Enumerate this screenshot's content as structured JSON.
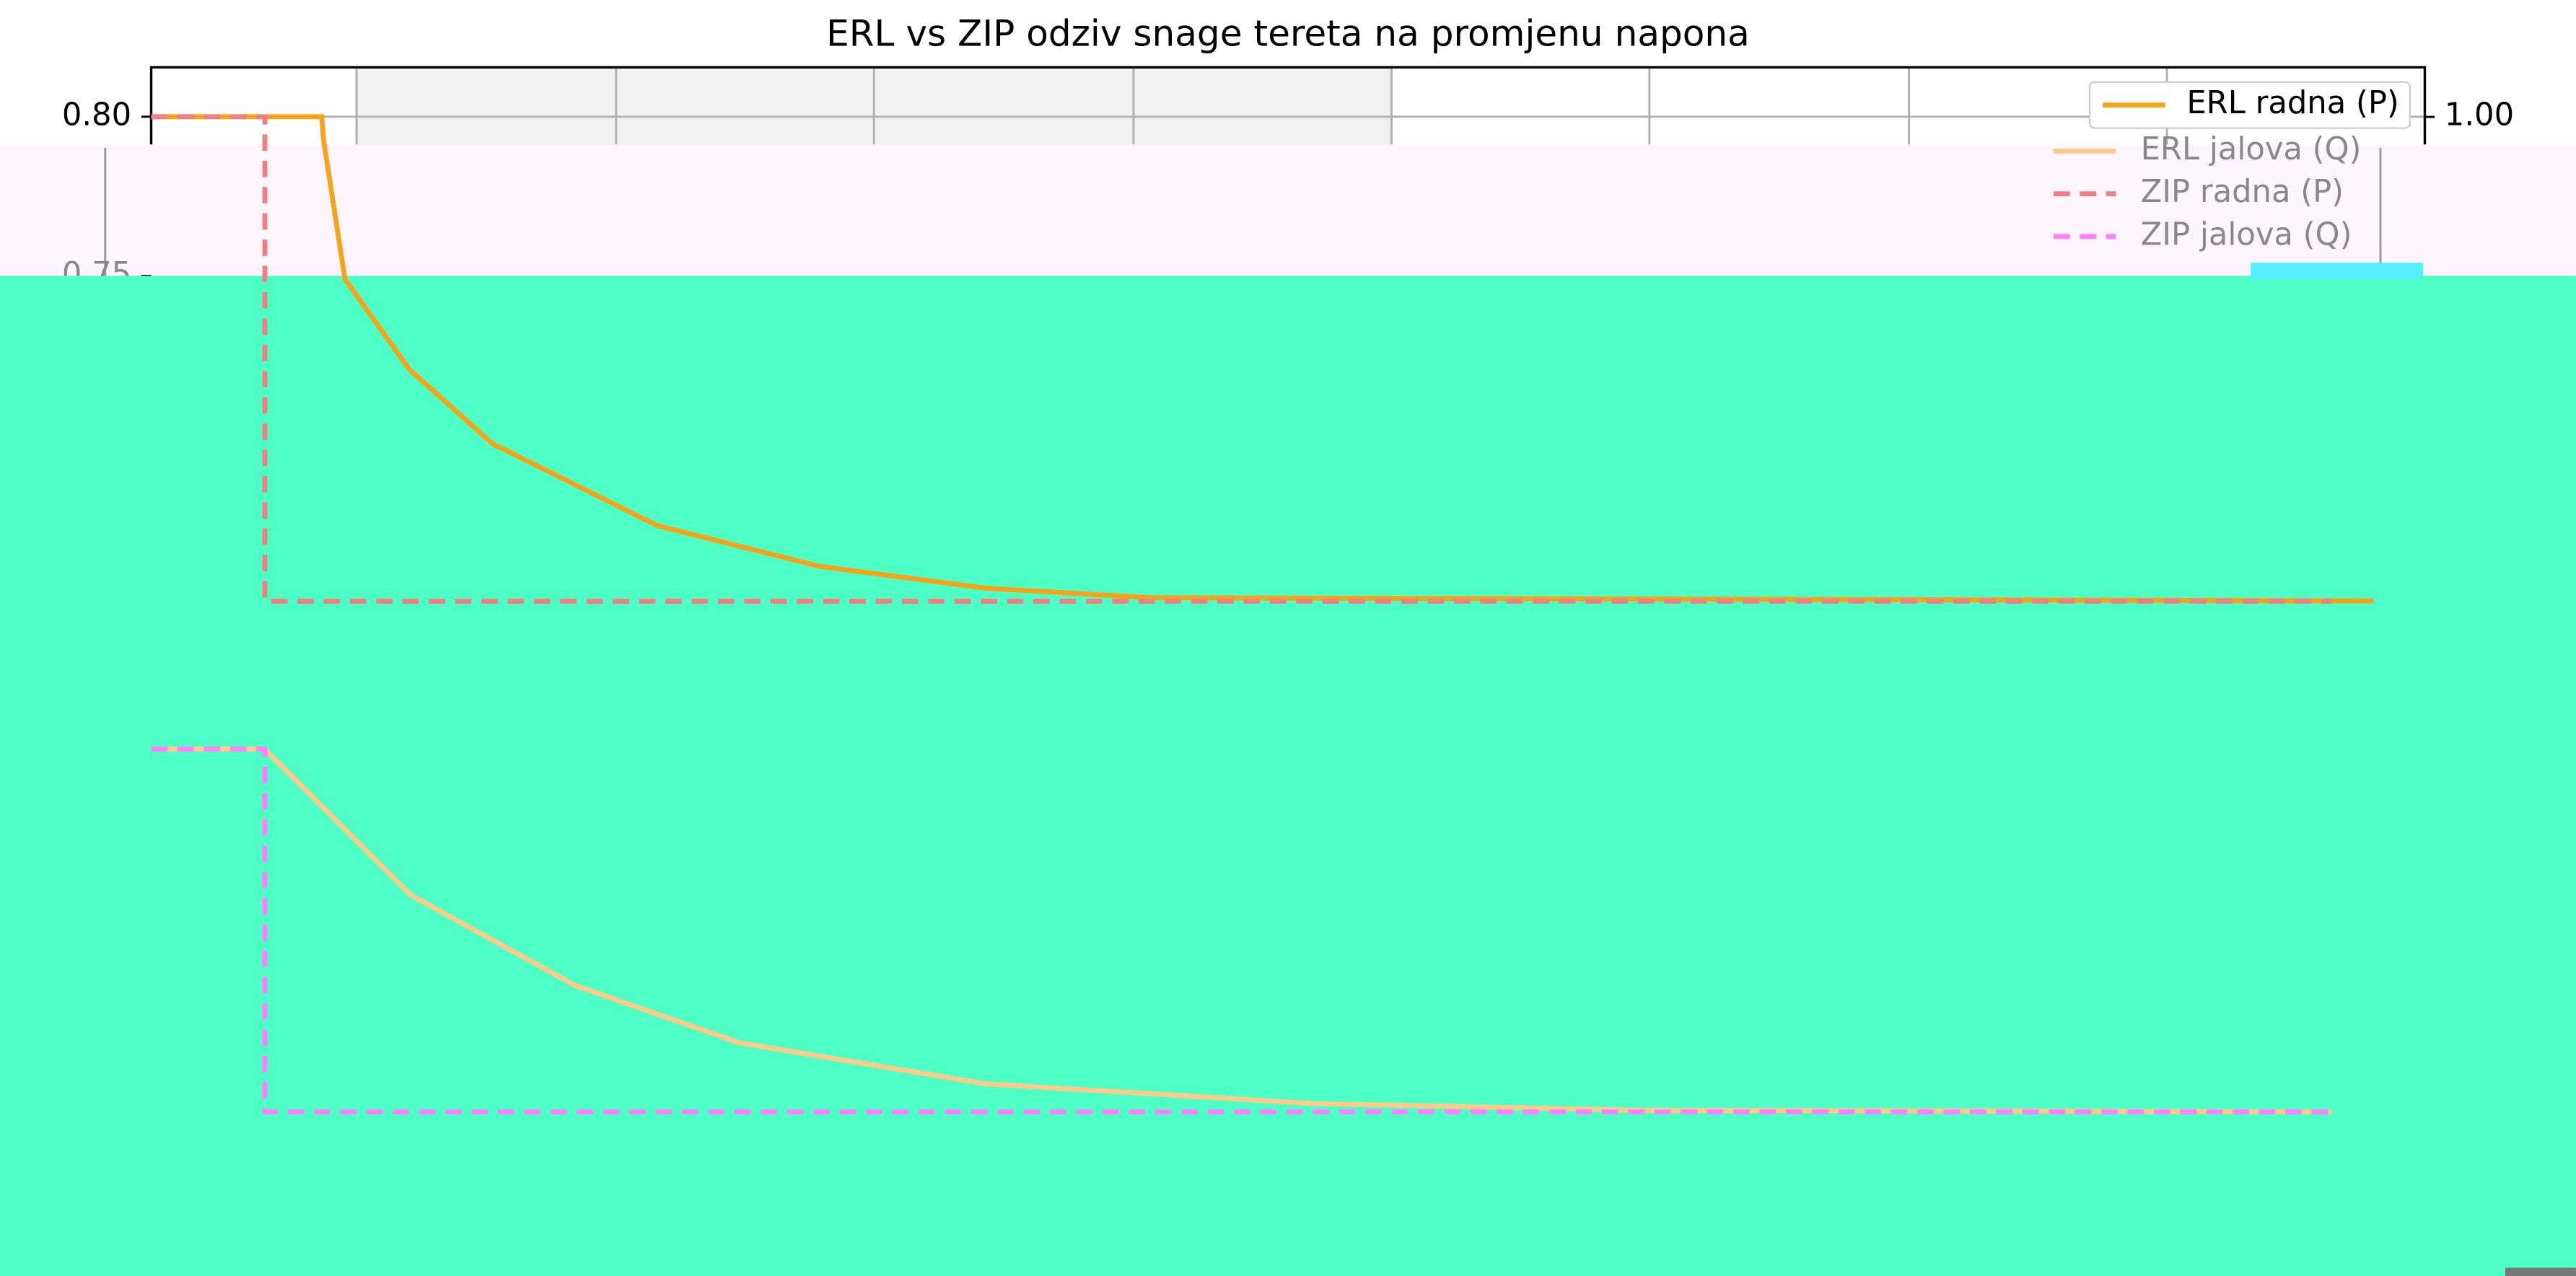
{
  "chart_data": {
    "type": "line",
    "title": "ERL vs ZIP odziv snage tereta na promjenu napona",
    "xlim": [
      -0.8,
      8.0
    ],
    "ylim": [
      0.4366,
      0.8155
    ],
    "yticks": [
      {
        "value": 0.8,
        "label": "0.80"
      },
      {
        "value": 0.75,
        "label": "0.75"
      }
    ],
    "y2lim": [
      0.3,
      1.03
    ],
    "y2ticks": [
      {
        "value": 1.0,
        "label": "1.00"
      }
    ],
    "grid": true,
    "legend": "upper right",
    "series": [
      {
        "name": "ERL radna (P)",
        "color": "#f5a31a",
        "linestyle": "solid",
        "x": [
          -0.8,
          -0.14,
          -0.133,
          -0.05,
          0.2,
          0.52,
          1.16,
          1.79,
          2.43,
          3.07,
          7.8
        ],
        "values": [
          0.8,
          0.8,
          0.7928,
          0.749,
          0.7206,
          0.6974,
          0.6716,
          0.6588,
          0.652,
          0.649,
          0.648
        ]
      },
      {
        "name": "ERL jalova (Q)",
        "color": "#ffc98a",
        "linestyle": "solid",
        "x": [
          -0.8,
          -0.361,
          0.204,
          0.84,
          1.476,
          2.43,
          3.7,
          4.97,
          7.64
        ],
        "values": [
          0.6015,
          0.6015,
          0.5557,
          0.5273,
          0.5093,
          0.4964,
          0.4902,
          0.4881,
          0.4876
        ]
      },
      {
        "name": "ZIP radna (P)",
        "color": "#f08080",
        "linestyle": "dashed",
        "x": [
          -0.8,
          -0.36,
          -0.36,
          7.64
        ],
        "values": [
          0.8,
          0.8,
          0.6479,
          0.6479
        ]
      },
      {
        "name": "ZIP jalova (Q)",
        "color": "#ff80ff",
        "linestyle": "dashed",
        "x": [
          -0.8,
          -0.36,
          -0.36,
          7.64
        ],
        "values": [
          0.6015,
          0.6015,
          0.4876,
          0.4876
        ]
      }
    ]
  }
}
